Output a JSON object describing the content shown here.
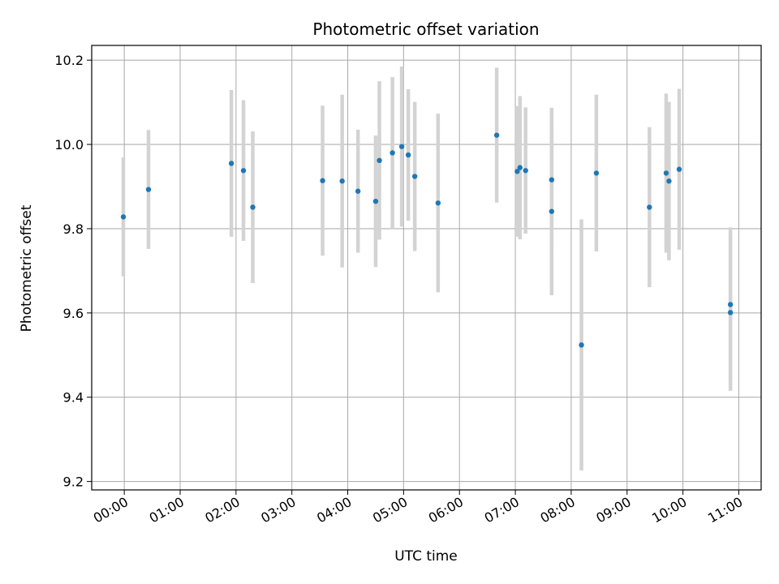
{
  "chart_data": {
    "type": "scatter",
    "title": "Photometric offset variation",
    "xlabel": "UTC time",
    "ylabel": "Photometric offset",
    "xlim": [
      "23:25",
      "11:24"
    ],
    "ylim": [
      9.18,
      10.235
    ],
    "x_ticks": [
      "00:00",
      "01:00",
      "02:00",
      "03:00",
      "04:00",
      "05:00",
      "06:00",
      "07:00",
      "08:00",
      "09:00",
      "10:00",
      "11:00"
    ],
    "y_ticks": [
      9.2,
      9.4,
      9.6,
      9.8,
      10.0,
      10.2
    ],
    "y_tick_labels": [
      "9.2",
      "9.4",
      "9.6",
      "9.8",
      "10.0",
      "10.2"
    ],
    "grid": true,
    "colors": {
      "point": "#1f77b4",
      "errorbar": "#d3d3d3",
      "grid": "#b0b0b0"
    },
    "points": [
      {
        "x": "23:59",
        "y": 9.828,
        "err": 0.141
      },
      {
        "x": "00:26",
        "y": 9.893,
        "err": 0.141
      },
      {
        "x": "01:55",
        "y": 9.955,
        "err": 0.174
      },
      {
        "x": "02:08",
        "y": 9.938,
        "err": 0.167
      },
      {
        "x": "02:18",
        "y": 9.851,
        "err": 0.18
      },
      {
        "x": "03:33",
        "y": 9.914,
        "err": 0.178
      },
      {
        "x": "03:54",
        "y": 9.913,
        "err": 0.205
      },
      {
        "x": "04:11",
        "y": 9.889,
        "err": 0.146
      },
      {
        "x": "04:30",
        "y": 9.865,
        "err": 0.156
      },
      {
        "x": "04:34",
        "y": 9.962,
        "err": 0.188
      },
      {
        "x": "04:48",
        "y": 9.98,
        "err": 0.18
      },
      {
        "x": "04:58",
        "y": 9.995,
        "err": 0.19
      },
      {
        "x": "05:05",
        "y": 9.975,
        "err": 0.156
      },
      {
        "x": "05:12",
        "y": 9.924,
        "err": 0.177
      },
      {
        "x": "05:37",
        "y": 9.861,
        "err": 0.212
      },
      {
        "x": "06:40",
        "y": 10.022,
        "err": 0.16
      },
      {
        "x": "07:02",
        "y": 9.936,
        "err": 0.155
      },
      {
        "x": "07:05",
        "y": 9.945,
        "err": 0.17
      },
      {
        "x": "07:11",
        "y": 9.938,
        "err": 0.15
      },
      {
        "x": "07:39",
        "y": 9.916,
        "err": 0.171
      },
      {
        "x": "07:39",
        "y": 9.841,
        "err": 0.199
      },
      {
        "x": "08:11",
        "y": 9.524,
        "err": 0.298
      },
      {
        "x": "08:27",
        "y": 9.932,
        "err": 0.186
      },
      {
        "x": "09:24",
        "y": 9.851,
        "err": 0.19
      },
      {
        "x": "09:42",
        "y": 9.932,
        "err": 0.189
      },
      {
        "x": "09:45",
        "y": 9.913,
        "err": 0.188
      },
      {
        "x": "09:56",
        "y": 9.941,
        "err": 0.191
      },
      {
        "x": "10:51",
        "y": 9.62,
        "err": 0.183
      },
      {
        "x": "10:51",
        "y": 9.601,
        "err": 0.186
      }
    ]
  }
}
